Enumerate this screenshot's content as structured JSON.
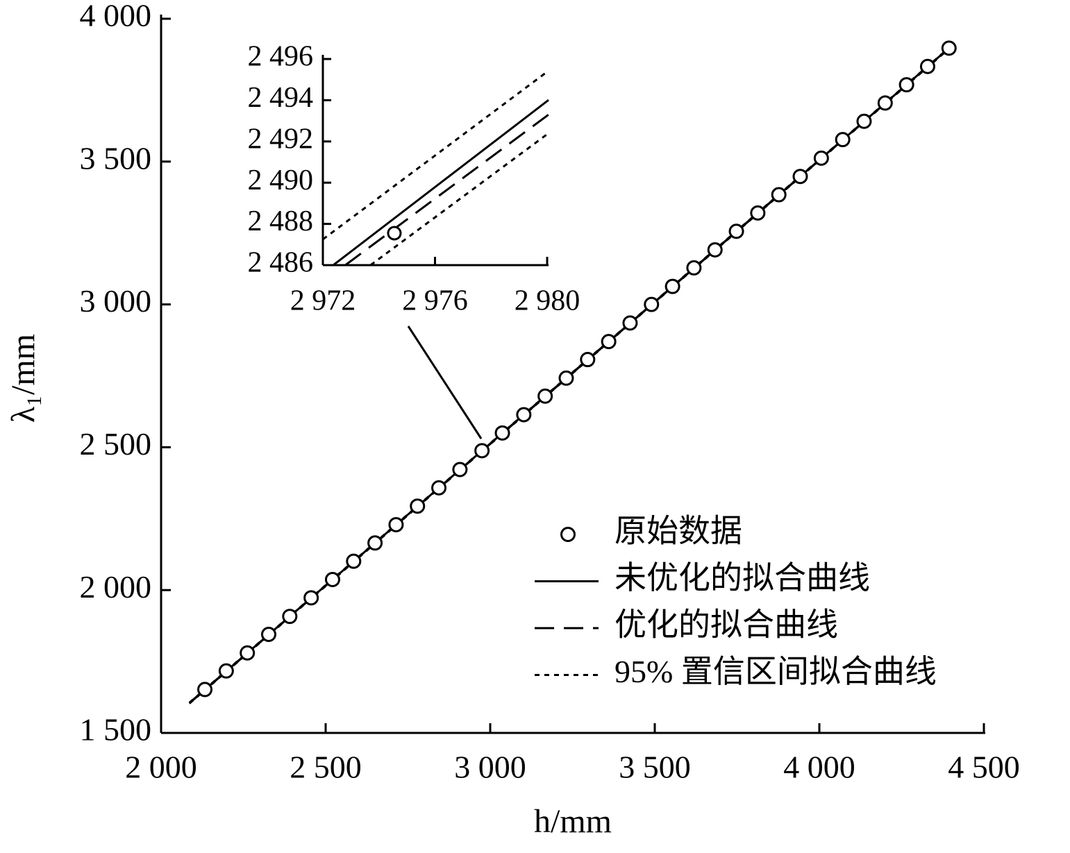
{
  "chart_data": [
    {
      "type": "scatter-line",
      "xlabel": "h/mm",
      "ylabel": "λ₁/mm",
      "xlim": [
        2000,
        4500
      ],
      "ylim": [
        1500,
        4000
      ],
      "xticks": [
        {
          "value": 2000,
          "label": "2 000"
        },
        {
          "value": 2500,
          "label": "2 500"
        },
        {
          "value": 3000,
          "label": "3 000"
        },
        {
          "value": 3500,
          "label": "3 500"
        },
        {
          "value": 4000,
          "label": "4 000"
        },
        {
          "value": 4500,
          "label": "4 500"
        }
      ],
      "yticks": [
        {
          "value": 1500,
          "label": "1 500"
        },
        {
          "value": 2000,
          "label": "2 000"
        },
        {
          "value": 2500,
          "label": "2 500"
        },
        {
          "value": 3000,
          "label": "3 000"
        },
        {
          "value": 3500,
          "label": "3 500"
        },
        {
          "value": 4000,
          "label": "4 000"
        }
      ],
      "legend": "lower right",
      "series": [
        {
          "name": "原始数据",
          "type": "scatter",
          "color": "#000000",
          "x": [
            2133,
            2198,
            2262,
            2327,
            2391,
            2456,
            2521,
            2585,
            2650,
            2714,
            2779,
            2844,
            2908,
            2975,
            3037,
            3102,
            3167,
            3231,
            3296,
            3360,
            3425,
            3490,
            3554,
            3619,
            3683,
            3748,
            3813,
            3877,
            3942,
            4006,
            4071,
            4136,
            4200,
            4265,
            4329,
            4394
          ],
          "values": [
            1652,
            1717,
            1780,
            1845,
            1908,
            1973,
            2037,
            2101,
            2165,
            2229,
            2294,
            2358,
            2422,
            2488,
            2550,
            2614,
            2679,
            2742,
            2807,
            2870,
            2935,
            3000,
            3063,
            3128,
            3191,
            3256,
            3320,
            3384,
            3448,
            3512,
            3577,
            3641,
            3705,
            3769,
            3833,
            3897
          ]
        },
        {
          "name": "未优化的拟合曲线",
          "type": "line",
          "style": "solid",
          "color": "#000000",
          "x": [
            2086,
            4394
          ],
          "values": [
            1605,
            3897
          ]
        },
        {
          "name": "优化的拟合曲线",
          "type": "line",
          "style": "dashed",
          "color": "#000000",
          "x": [
            2086,
            4394
          ],
          "values": [
            1604,
            3896
          ]
        },
        {
          "name": "95% 置信区间拟合曲线",
          "type": "line",
          "style": "dotted",
          "color": "#000000",
          "x": [
            2086,
            4394
          ],
          "values": [
            1606,
            3898
          ],
          "lower_values": [
            1603,
            3895
          ]
        }
      ]
    },
    {
      "type": "scatter-line",
      "xlim": [
        2972,
        2980
      ],
      "ylim": [
        2486,
        2496
      ],
      "xticks": [
        {
          "value": 2972,
          "label": "2 972"
        },
        {
          "value": 2976,
          "label": "2 976"
        },
        {
          "value": 2980,
          "label": "2 980"
        }
      ],
      "yticks": [
        {
          "value": 2486,
          "label": "2 486"
        },
        {
          "value": 2488,
          "label": "2 488"
        },
        {
          "value": 2490,
          "label": "2 490"
        },
        {
          "value": 2492,
          "label": "2 492"
        },
        {
          "value": 2494,
          "label": "2 494"
        },
        {
          "value": 2496,
          "label": "2 496"
        }
      ],
      "series": [
        {
          "type": "scatter",
          "color": "#000000",
          "x": [
            2974.55
          ],
          "values": [
            2487.55
          ]
        },
        {
          "type": "line",
          "style": "solid",
          "color": "#000000",
          "x": [
            2972.37,
            2980.05
          ],
          "values": [
            2486,
            2494.01
          ]
        },
        {
          "type": "line",
          "style": "dashed",
          "color": "#000000",
          "x": [
            2972.8,
            2980.05
          ],
          "values": [
            2486,
            2493.3
          ]
        },
        {
          "type": "line",
          "style": "dotted",
          "color": "#000000",
          "x": [
            2972,
            2980.05
          ],
          "values": [
            2487.25,
            2495.43
          ]
        },
        {
          "type": "line",
          "style": "dotted",
          "color": "#000000",
          "x": [
            2973.7,
            2980.05
          ],
          "values": [
            2486,
            2492.4
          ]
        }
      ]
    }
  ]
}
